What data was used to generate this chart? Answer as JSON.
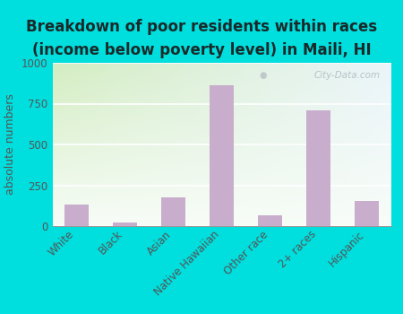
{
  "categories": [
    "White",
    "Black",
    "Asian",
    "Native Hawaiian",
    "Other race",
    "2+ races",
    "Hispanic"
  ],
  "values": [
    130,
    20,
    175,
    860,
    65,
    710,
    155
  ],
  "bar_color": "#C9ADCC",
  "background_color": "#00DEDE",
  "plot_bg_top_left": "#d4ecc4",
  "plot_bg_right": "#eef5f8",
  "title_line1": "Breakdown of poor residents within races",
  "title_line2": "(income below poverty level) in Maili, HI",
  "ylabel": "absolute numbers",
  "ylim": [
    0,
    1000
  ],
  "yticks": [
    0,
    250,
    500,
    750,
    1000
  ],
  "title_fontsize": 12,
  "ylabel_fontsize": 9,
  "tick_fontsize": 8.5,
  "bar_width": 0.5,
  "watermark": "City-Data.com"
}
